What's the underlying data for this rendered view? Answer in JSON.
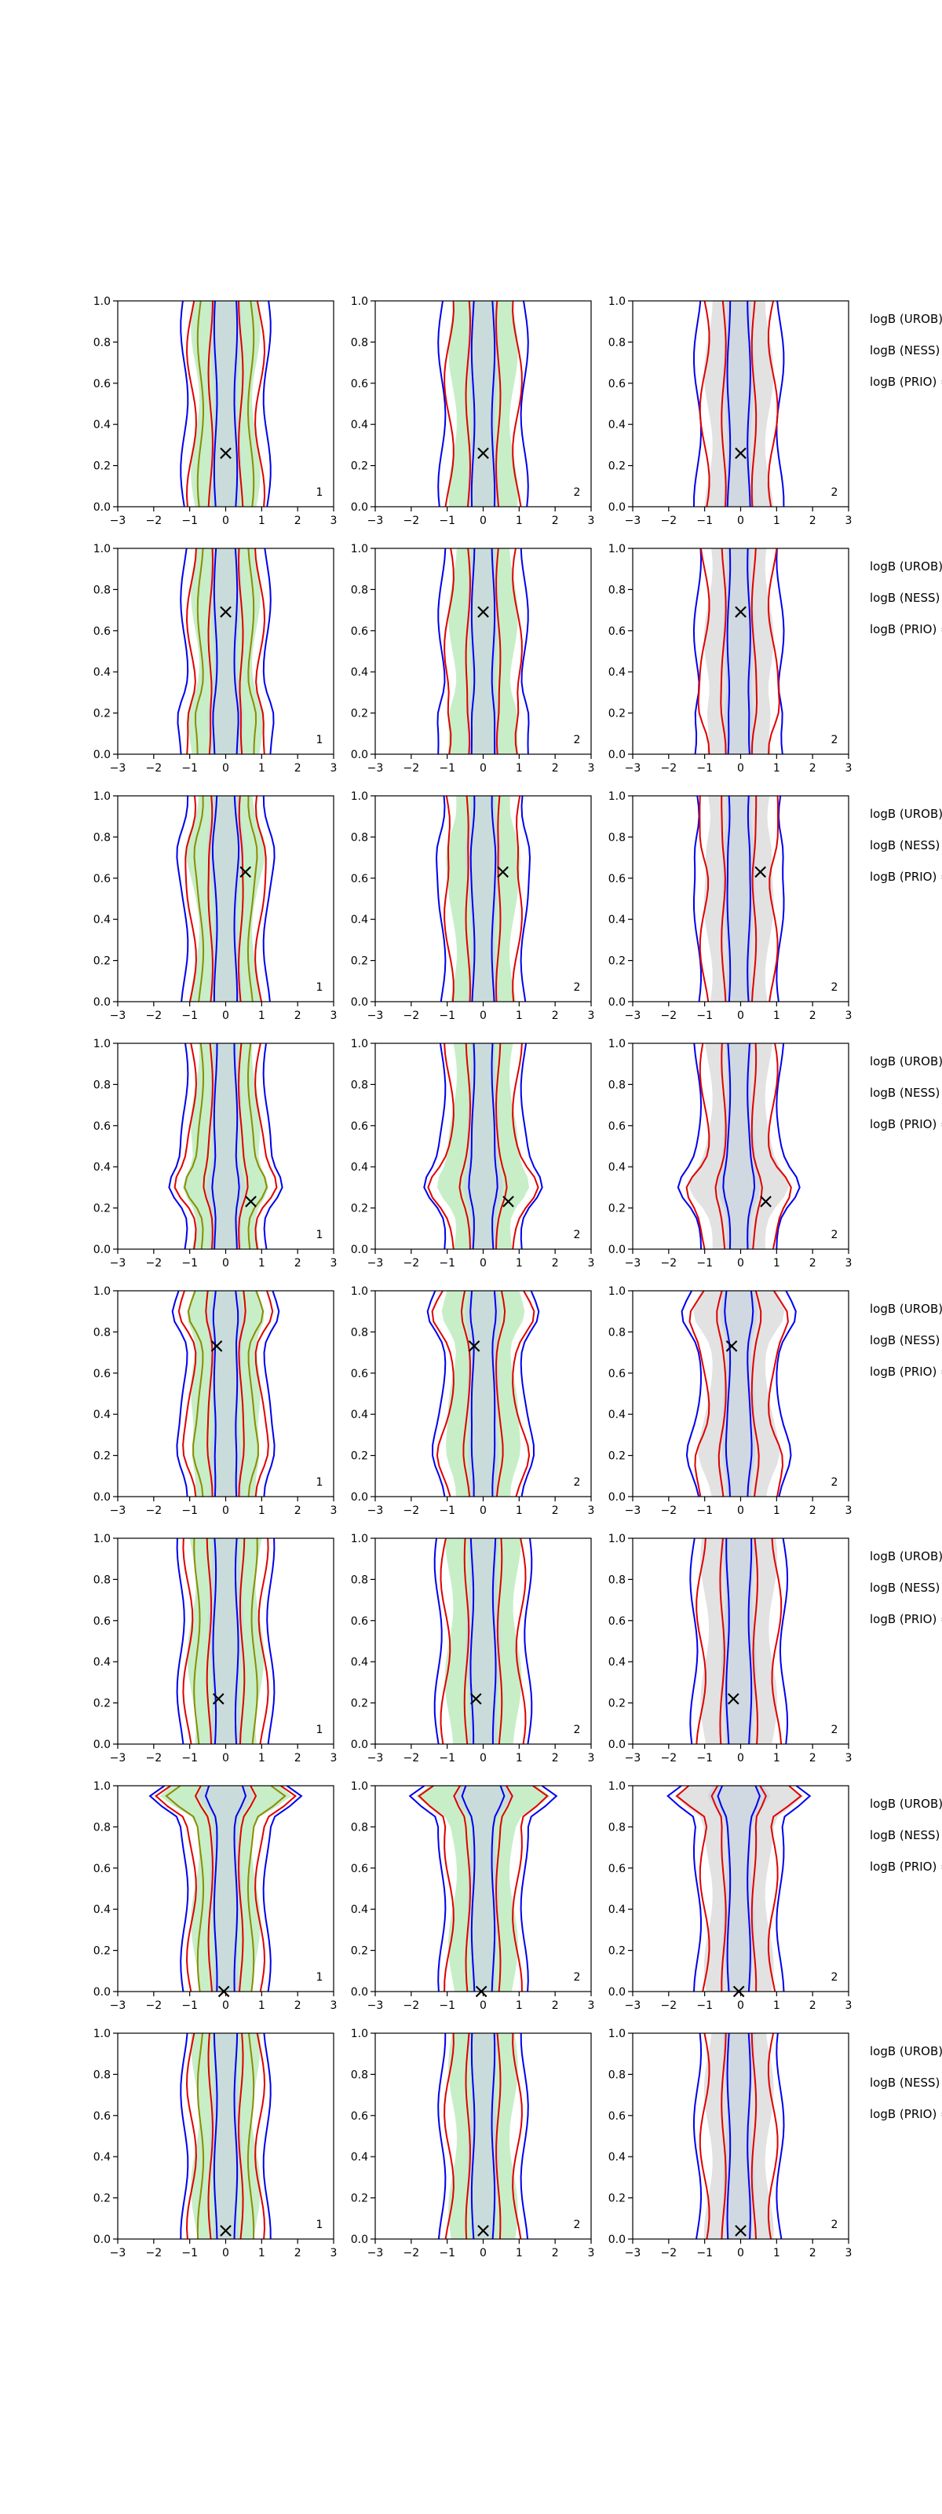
{
  "chart_data": {
    "type": "contour",
    "layout": {
      "rows": 8,
      "cols": 3
    },
    "xlim": [
      -3,
      3
    ],
    "ylim": [
      0.0,
      1.0
    ],
    "x_ticks": [
      "−3",
      "−2",
      "−1",
      "0",
      "1",
      "2",
      "3"
    ],
    "y_ticks": [
      "0.0",
      "0.2",
      "0.4",
      "0.6",
      "0.8",
      "1.0"
    ],
    "series_colors": {
      "fill_a": "#c8eec8",
      "fill_b": "#e2e2e2",
      "fill_core": "#c9d4e2",
      "line_blue": "#0000ee",
      "line_red": "#e00000",
      "line_olive": "#8c8c00",
      "marker": "#000000"
    },
    "column_corner_labels": [
      "1",
      "2",
      "2"
    ],
    "row_annotations": [
      [
        "logB (UROB) =",
        "logB (NESS) =",
        "logB (PRIO) ="
      ],
      [
        "logB (UROB) =",
        "logB (NESS) =",
        "logB (PRIO) ="
      ],
      [
        "logB (UROB) =",
        "logB (NESS) =",
        "logB (PRIO) ="
      ],
      [
        "logB (UROB) =",
        "logB (NESS) =",
        "logB (PRIO) ="
      ],
      [
        "logB (UROB) =",
        "logB (NESS) =",
        "logB (PRIO) ="
      ],
      [
        "logB (UROB) =",
        "logB (NESS) =",
        "logB (PRIO) ="
      ],
      [
        "logB (UROB) =",
        "logB (NESS) =",
        "logB (PRIO) ="
      ],
      [
        "logB (UROB) =",
        "logB (NESS) =",
        "logB (PRIO) ="
      ]
    ],
    "markers": [
      {
        "x": 0.0,
        "y": 0.26
      },
      {
        "x": 0.0,
        "y": 0.69
      },
      {
        "x": 0.55,
        "y": 0.63
      },
      {
        "x": 0.7,
        "y": 0.23
      },
      {
        "x": -0.25,
        "y": 0.73
      },
      {
        "x": -0.2,
        "y": 0.22
      },
      {
        "x": -0.05,
        "y": 0.0
      },
      {
        "x": 0.0,
        "y": 0.04
      }
    ],
    "marker_symbol": "×"
  }
}
